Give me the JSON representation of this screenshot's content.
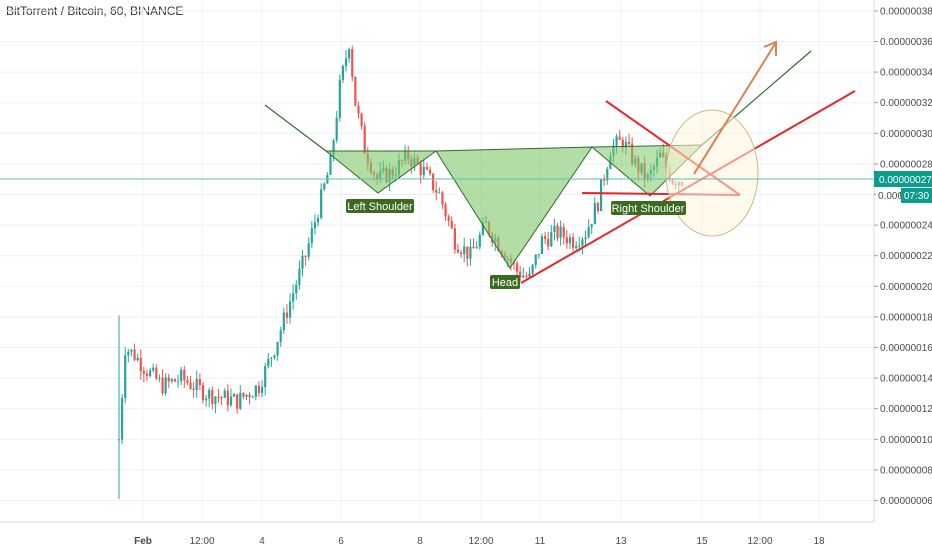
{
  "header": {
    "title": "BitTorrent / Bitcoin, 60, BINANCE"
  },
  "price_axis": {
    "last_price_label": "0.00000027",
    "countdown_prefix": "0.000",
    "countdown": "07:30"
  },
  "colors": {
    "up": "#26a69a",
    "down": "#ef5350",
    "grid": "#eef0f3",
    "price_line": "#5cc0b2",
    "badge": "#0f9c8c",
    "pattern_fill": "#7fc86a",
    "pattern_line": "#2f6b2a",
    "label_bg": "#3a6b1f",
    "red_line": "#e8242c",
    "arrow": "#d9824f",
    "circle_fill": "#fff6dc",
    "circle_stroke": "#c9b98a"
  },
  "annotations": {
    "left_shoulder": "Left Shoulder",
    "head": "Head",
    "right_shoulder": "Right Shoulder"
  },
  "chart_data": {
    "type": "candlestick",
    "title": "BitTorrent / Bitcoin, 60, BINANCE",
    "y_ticks": [
      "0.00000006",
      "0.00000008",
      "0.00000010",
      "0.00000012",
      "0.00000014",
      "0.00000016",
      "0.00000018",
      "0.00000020",
      "0.00000022",
      "0.00000024",
      "0.00000026",
      "0.00000028",
      "0.00000030",
      "0.00000032",
      "0.00000034",
      "0.00000036",
      "0.00000038"
    ],
    "x_ticks": [
      "Feb",
      "12:00",
      "4",
      "6",
      "8",
      "12:00",
      "11",
      "13",
      "15",
      "12:00",
      "18"
    ],
    "ylim": [
      5e-08,
      4e-07
    ],
    "last_price": 2.7e-07,
    "close_path": [
      [
        0,
        1e-07
      ],
      [
        2,
        1.6e-07
      ],
      [
        5,
        1.55e-07
      ],
      [
        9,
        1.45e-07
      ],
      [
        14,
        1.35e-07
      ],
      [
        20,
        1.4e-07
      ],
      [
        28,
        1.3e-07
      ],
      [
        38,
        1.25e-07
      ],
      [
        45,
        1.35e-07
      ],
      [
        50,
        1.6e-07
      ],
      [
        55,
        1.9e-07
      ],
      [
        60,
        2.2e-07
      ],
      [
        64,
        2.5e-07
      ],
      [
        68,
        2.8e-07
      ],
      [
        71,
        3.3e-07
      ],
      [
        74,
        3.6e-07
      ],
      [
        76,
        3.2e-07
      ],
      [
        79,
        2.9e-07
      ],
      [
        83,
        2.7e-07
      ],
      [
        88,
        2.75e-07
      ],
      [
        93,
        2.85e-07
      ],
      [
        98,
        2.75e-07
      ],
      [
        103,
        2.6e-07
      ],
      [
        108,
        2.3e-07
      ],
      [
        113,
        2.2e-07
      ],
      [
        118,
        2.4e-07
      ],
      [
        123,
        2.25e-07
      ],
      [
        128,
        2.1e-07
      ],
      [
        132,
        2.05e-07
      ],
      [
        136,
        2.3e-07
      ],
      [
        141,
        2.35e-07
      ],
      [
        146,
        2.3e-07
      ],
      [
        150,
        2.35e-07
      ],
      [
        154,
        2.55e-07
      ],
      [
        158,
        2.9e-07
      ],
      [
        162,
        2.95e-07
      ],
      [
        166,
        2.8e-07
      ],
      [
        170,
        2.7e-07
      ],
      [
        174,
        2.85e-07
      ],
      [
        178,
        2.7e-07
      ],
      [
        181,
        2.7e-07
      ]
    ]
  }
}
